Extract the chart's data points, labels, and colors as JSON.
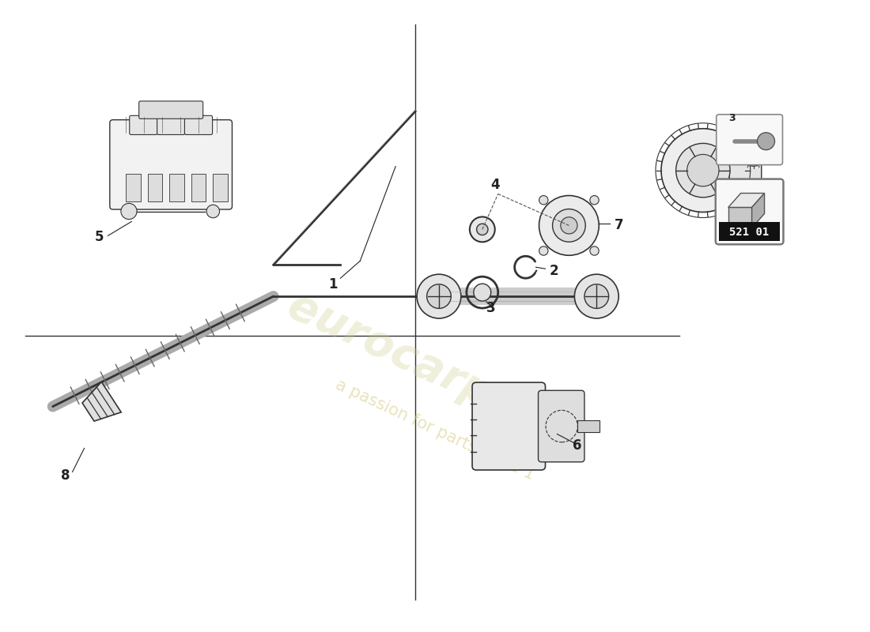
{
  "background_color": "#ffffff",
  "badge_number": "521 01",
  "line_color": "#333333",
  "annotation_color": "#222222",
  "dashed_color": "#555555",
  "watermark_color": "#d4c875",
  "watermark_alpha": 0.5,
  "part_labels": [
    "1",
    "2",
    "3",
    "4",
    "5",
    "6",
    "7",
    "8"
  ]
}
